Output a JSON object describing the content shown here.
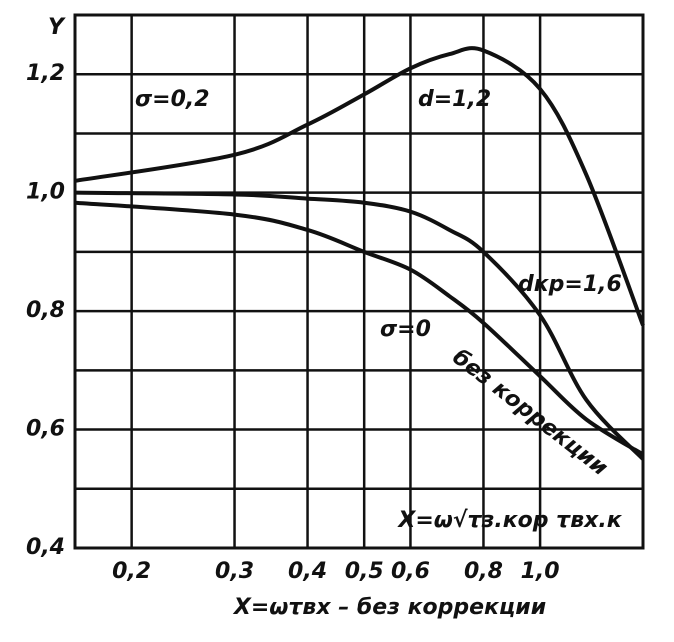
{
  "chart_data": {
    "type": "line",
    "y_label": "Y",
    "x_label": "X=ωτвх – без коррекции",
    "x_label_2": "X=ω√τз.кор τвх.к",
    "log_x": true,
    "grid": true,
    "color": "#111111",
    "xlim": [
      0.16,
      1.5
    ],
    "ylim": [
      0.4,
      1.3
    ],
    "xticks": [
      {
        "value": 0.2,
        "label": "0,2"
      },
      {
        "value": 0.3,
        "label": "0,3"
      },
      {
        "value": 0.4,
        "label": "0,4"
      },
      {
        "value": 0.5,
        "label": "0,5"
      },
      {
        "value": 0.6,
        "label": "0,6"
      },
      {
        "value": 0.8,
        "label": "0,8"
      },
      {
        "value": 1.0,
        "label": "1,0"
      }
    ],
    "yticks": [
      {
        "value": 0.4,
        "label": "0,4"
      },
      {
        "value": 0.6,
        "label": "0,6"
      },
      {
        "value": 0.8,
        "label": "0,8"
      },
      {
        "value": 1.0,
        "label": "1,0"
      },
      {
        "value": 1.2,
        "label": "1,2"
      }
    ],
    "ygrid": [
      0.5,
      0.7,
      0.9,
      1.1
    ],
    "x": [
      0.16,
      0.3,
      0.4,
      0.5,
      0.6,
      0.7,
      0.8,
      1.0,
      1.2,
      1.5
    ],
    "series": [
      {
        "name": "d=1,2",
        "values": [
          1.02,
          1.064,
          1.115,
          1.166,
          1.21,
          1.234,
          1.24,
          1.175,
          1.03,
          0.776
        ]
      },
      {
        "name": "dкр=1,6",
        "values": [
          1.0,
          0.997,
          0.99,
          0.983,
          0.968,
          0.937,
          0.9,
          0.793,
          0.65,
          0.55
        ]
      },
      {
        "name": "без коррекции",
        "values": [
          0.983,
          0.963,
          0.937,
          0.9,
          0.87,
          0.825,
          0.78,
          0.69,
          0.617,
          0.558
        ]
      }
    ],
    "annotations": [
      "σ=0,2",
      "σ=0"
    ]
  }
}
